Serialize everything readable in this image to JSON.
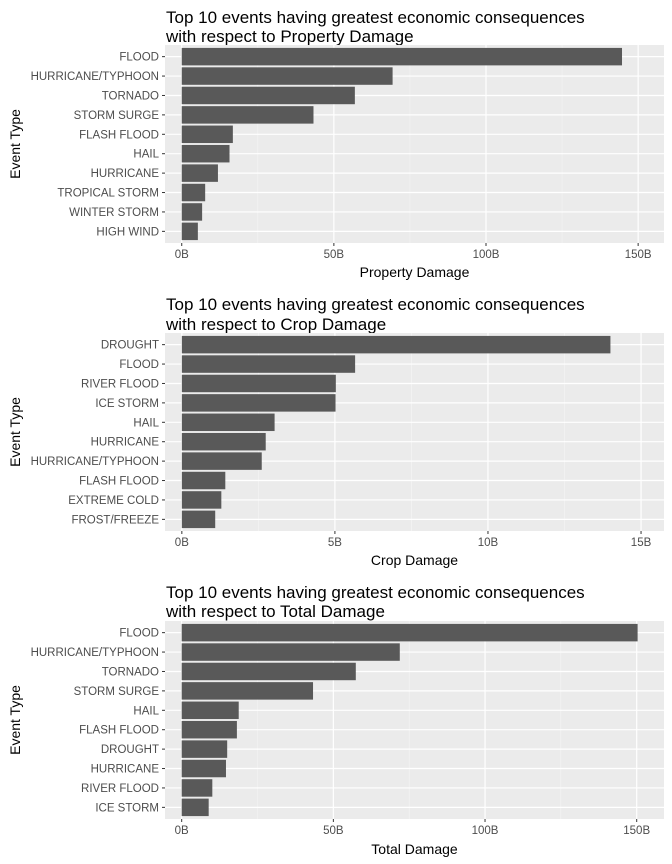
{
  "colors": {
    "panel_bg": "#ebebeb",
    "grid_major": "#ffffff",
    "grid_minor": "#f5f5f5",
    "bar": "#595959",
    "tick_text": "#4d4d4d",
    "tick_mark": "#333333"
  },
  "chart_data": [
    {
      "type": "bar",
      "orientation": "horizontal",
      "title_lines": [
        "Top 10 events having greatest economic consequences",
        "with respect to Property Damage"
      ],
      "xlabel": "Property Damage",
      "ylabel": "Event Type",
      "categories": [
        "FLOOD",
        "HURRICANE/TYPHOON",
        "TORNADO",
        "STORM SURGE",
        "FLASH FLOOD",
        "HAIL",
        "HURRICANE",
        "TROPICAL STORM",
        "WINTER STORM",
        "HIGH WIND"
      ],
      "values": [
        144.7,
        69.3,
        56.9,
        43.3,
        16.8,
        15.7,
        11.9,
        7.7,
        6.7,
        5.3
      ],
      "value_unit": "billions USD",
      "xlim": [
        -5.5,
        158.5
      ],
      "ticks": [
        0,
        50,
        100,
        150
      ],
      "tick_labels": [
        "0B",
        "50B",
        "100B",
        "150B"
      ],
      "grid": true
    },
    {
      "type": "bar",
      "orientation": "horizontal",
      "title_lines": [
        "Top 10 events having greatest economic consequences",
        "with respect to Crop Damage"
      ],
      "xlabel": "Crop Damage",
      "ylabel": "Event Type",
      "categories": [
        "DROUGHT",
        "FLOOD",
        "RIVER FLOOD",
        "ICE STORM",
        "HAIL",
        "HURRICANE",
        "HURRICANE/TYPHOON",
        "FLASH FLOOD",
        "EXTREME COLD",
        "FROST/FREEZE"
      ],
      "values": [
        14.0,
        5.66,
        5.03,
        5.02,
        3.03,
        2.74,
        2.61,
        1.42,
        1.29,
        1.09
      ],
      "value_unit": "billions USD",
      "xlim": [
        -0.55,
        15.75
      ],
      "ticks": [
        0,
        5,
        10,
        15
      ],
      "tick_labels": [
        "0B",
        "5B",
        "10B",
        "15B"
      ],
      "grid": true
    },
    {
      "type": "bar",
      "orientation": "horizontal",
      "title_lines": [
        "Top 10 events having greatest economic consequences",
        "with respect to Total Damage"
      ],
      "xlabel": "Total Damage",
      "ylabel": "Event Type",
      "categories": [
        "FLOOD",
        "HURRICANE/TYPHOON",
        "TORNADO",
        "STORM SURGE",
        "HAIL",
        "FLASH FLOOD",
        "DROUGHT",
        "HURRICANE",
        "RIVER FLOOD",
        "ICE STORM"
      ],
      "values": [
        150.3,
        71.9,
        57.4,
        43.3,
        18.8,
        18.2,
        15.0,
        14.6,
        10.1,
        8.9
      ],
      "value_unit": "billions USD",
      "xlim": [
        -5.5,
        159.0
      ],
      "ticks": [
        0,
        50,
        100,
        150
      ],
      "tick_labels": [
        "0B",
        "50B",
        "100B",
        "150B"
      ],
      "grid": true
    }
  ]
}
